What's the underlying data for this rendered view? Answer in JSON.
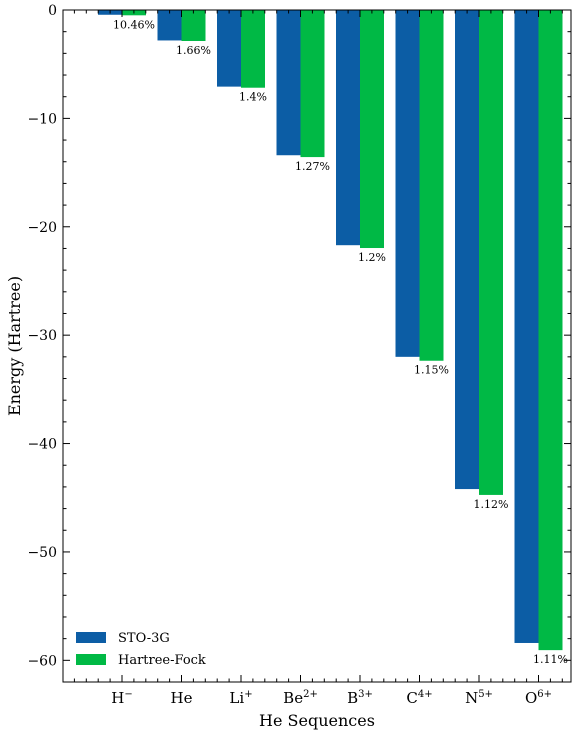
{
  "chart_data": {
    "type": "bar",
    "title": "",
    "xlabel": "He Sequences",
    "ylabel": "Energy (Hartree)",
    "categories": [
      {
        "base": "H",
        "sup": "−"
      },
      {
        "base": "He",
        "sup": ""
      },
      {
        "base": "Li",
        "sup": "+"
      },
      {
        "base": "Be",
        "sup": "2+"
      },
      {
        "base": "B",
        "sup": "3+"
      },
      {
        "base": "C",
        "sup": "4+"
      },
      {
        "base": "N",
        "sup": "5+"
      },
      {
        "base": "O",
        "sup": "6+"
      }
    ],
    "series": [
      {
        "name": "STO-3G",
        "color": "#0C5DA5",
        "values": [
          -0.44,
          -2.81,
          -7.07,
          -13.4,
          -21.7,
          -32.0,
          -44.2,
          -58.4
        ]
      },
      {
        "name": "Hartree-Fock",
        "color": "#00B945",
        "values": [
          -0.49,
          -2.86,
          -7.17,
          -13.57,
          -21.96,
          -32.36,
          -44.74,
          -59.06
        ]
      }
    ],
    "data_labels": [
      "10.46%",
      "1.66%",
      "1.4%",
      "1.27%",
      "1.2%",
      "1.15%",
      "1.12%",
      "1.11%"
    ],
    "ylim": [
      -62,
      0
    ],
    "yticks": [
      0,
      -10,
      -20,
      -30,
      -40,
      -50,
      -60
    ],
    "ytick_labels": [
      "0",
      "−10",
      "−20",
      "−30",
      "−40",
      "−50",
      "−60"
    ],
    "legend_position": "lower-left",
    "grid": false
  }
}
